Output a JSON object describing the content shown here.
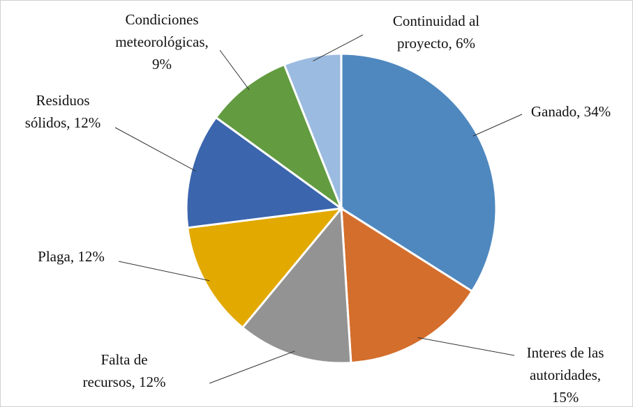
{
  "chart_data": {
    "type": "pie",
    "categories": [
      "Ganado, 34%",
      "Interes de las\nautoridades,\n15%",
      "Falta de\nrecursos, 12%",
      "Plaga, 12%",
      "Residuos\nsólidos, 12%",
      "Condiciones\nmeteorológicas,\n9%",
      "Continuidad al\nproyecto, 6%"
    ],
    "values": [
      34,
      15,
      12,
      12,
      12,
      9,
      6
    ],
    "colors": [
      "#4f88bf",
      "#d46e2c",
      "#939393",
      "#e2a900",
      "#3b65ad",
      "#629b40",
      "#9bbbe0"
    ]
  }
}
